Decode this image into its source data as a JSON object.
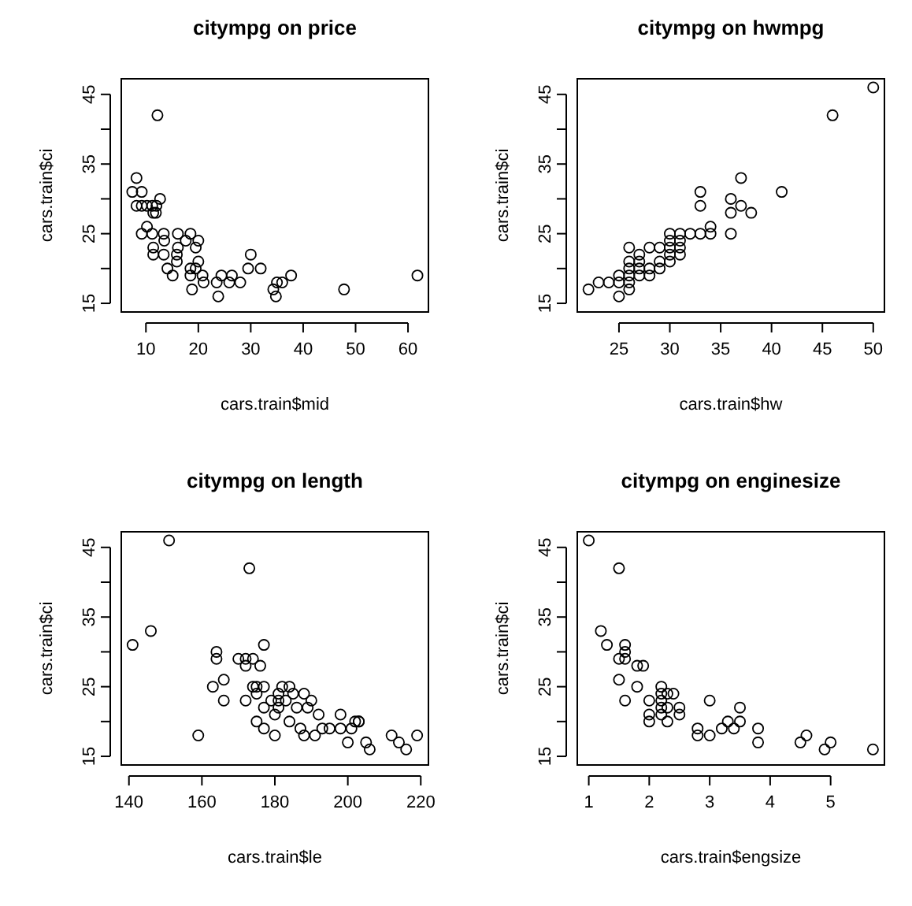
{
  "chart_data": [
    {
      "type": "scatter",
      "title": "citympg on price",
      "xlabel": "cars.train$mid",
      "ylabel": "cars.train$ci",
      "marker": "circle",
      "xlim": [
        5.3,
        63.9
      ],
      "xticks": [
        10,
        20,
        30,
        40,
        50,
        60
      ],
      "ylim": [
        13.76,
        47.24
      ],
      "yticks": [
        15,
        {
          "value": 20,
          "label": null
        },
        25,
        {
          "value": 30,
          "label": null
        },
        35,
        {
          "value": 40,
          "label": null
        },
        45
      ],
      "series": [
        {
          "color": "#000000",
          "x": [
            12.2,
            8.2,
            7.4,
            9.2,
            8.2,
            9.2,
            10.2,
            11.2,
            12,
            12.7,
            11.4,
            11.9,
            10.2,
            9.2,
            11.2,
            13.4,
            16.1,
            18.5,
            11.4,
            13.5,
            16.1,
            19.5,
            17.6,
            20,
            11.4,
            13.4,
            15.9,
            15.9,
            14.1,
            15.1,
            18.5,
            19.5,
            18.5,
            20,
            20.8,
            21,
            18.8,
            23.5,
            24.4,
            25.9,
            26.4,
            28,
            23.8,
            29.5,
            30,
            31.9,
            34.3,
            34.8,
            35,
            36,
            37.7,
            47.8,
            61.8
          ],
          "values": [
            42,
            33,
            31,
            31,
            29,
            29,
            29,
            29,
            29,
            30,
            28,
            28,
            26,
            25,
            25,
            25,
            25,
            25,
            23,
            24,
            23,
            23,
            24,
            24,
            22,
            22,
            22,
            21,
            20,
            19,
            20,
            20,
            19,
            21,
            19,
            18,
            17,
            18,
            19,
            18,
            19,
            18,
            16,
            20,
            22,
            20,
            17,
            16,
            18,
            18,
            19,
            17,
            19
          ]
        }
      ]
    },
    {
      "type": "scatter",
      "title": "citympg on hwmpg",
      "xlabel": "cars.train$hw",
      "ylabel": "cars.train$ci",
      "marker": "circle",
      "xlim": [
        20.9,
        51.1
      ],
      "xticks": [
        25,
        30,
        35,
        40,
        45,
        50
      ],
      "ylim": [
        13.76,
        47.24
      ],
      "yticks": [
        15,
        {
          "value": 20,
          "label": null
        },
        25,
        {
          "value": 30,
          "label": null
        },
        35,
        {
          "value": 40,
          "label": null
        },
        45
      ],
      "series": [
        {
          "color": "#000000",
          "x": [
            22,
            23,
            24,
            25,
            25,
            25,
            26,
            26,
            26,
            26,
            26,
            26,
            27,
            27,
            27,
            27,
            28,
            28,
            28,
            29,
            29,
            29,
            30,
            30,
            30,
            30,
            30,
            31,
            31,
            31,
            31,
            32,
            33,
            34,
            34,
            33,
            33,
            36,
            36,
            36,
            37,
            37,
            38,
            41,
            46,
            50
          ],
          "values": [
            17,
            18,
            18,
            16,
            18,
            19,
            17,
            18,
            19,
            20,
            21,
            23,
            19,
            20,
            21,
            22,
            19,
            20,
            23,
            20,
            21,
            23,
            21,
            22,
            23,
            24,
            25,
            22,
            23,
            24,
            25,
            25,
            25,
            25,
            26,
            29,
            31,
            25,
            28,
            30,
            29,
            33,
            28,
            31,
            42,
            46
          ]
        }
      ]
    },
    {
      "type": "scatter",
      "title": "citympg on length",
      "xlabel": "cars.train$le",
      "ylabel": "cars.train$ci",
      "marker": "circle",
      "xlim": [
        137.9,
        222.1
      ],
      "xticks": [
        140,
        160,
        180,
        200,
        220
      ],
      "ylim": [
        13.76,
        47.24
      ],
      "yticks": [
        15,
        {
          "value": 20,
          "label": null
        },
        25,
        {
          "value": 30,
          "label": null
        },
        35,
        {
          "value": 40,
          "label": null
        },
        45
      ],
      "series": [
        {
          "color": "#000000",
          "x": [
            141,
            146,
            151,
            159,
            163,
            164,
            164,
            166,
            166,
            170,
            172,
            172,
            174,
            176,
            177,
            173,
            172,
            174,
            175,
            175,
            177,
            177,
            175,
            177,
            179,
            180,
            180,
            181,
            181,
            181,
            182,
            183,
            184,
            185,
            184,
            186,
            187,
            188,
            188,
            189,
            190,
            191,
            192,
            193,
            195,
            198,
            198,
            200,
            201,
            202,
            203,
            203,
            205,
            206,
            212,
            214,
            216,
            219
          ],
          "values": [
            31,
            33,
            46,
            18,
            25,
            30,
            29,
            26,
            23,
            29,
            29,
            28,
            29,
            28,
            31,
            42,
            23,
            25,
            25,
            24,
            25,
            22,
            20,
            19,
            23,
            21,
            18,
            24,
            23,
            22,
            25,
            23,
            25,
            24,
            20,
            22,
            19,
            24,
            18,
            22,
            23,
            18,
            21,
            19,
            19,
            21,
            19,
            17,
            19,
            20,
            20,
            20,
            17,
            16,
            18,
            17,
            16,
            18
          ]
        }
      ]
    },
    {
      "type": "scatter",
      "title": "citympg on enginesize",
      "xlabel": "cars.train$engsize",
      "ylabel": "cars.train$ci",
      "marker": "circle",
      "xlim": [
        0.81,
        5.89
      ],
      "xticks": [
        1,
        2,
        3,
        4,
        5
      ],
      "ylim": [
        13.76,
        47.24
      ],
      "yticks": [
        15,
        {
          "value": 20,
          "label": null
        },
        25,
        {
          "value": 30,
          "label": null
        },
        35,
        {
          "value": 40,
          "label": null
        },
        45
      ],
      "series": [
        {
          "color": "#000000",
          "x": [
            1.0,
            1.2,
            1.3,
            1.5,
            1.5,
            1.6,
            1.6,
            1.6,
            1.5,
            1.6,
            1.8,
            1.9,
            1.8,
            2.0,
            2.0,
            2.0,
            2.2,
            2.2,
            2.2,
            2.2,
            2.2,
            2.3,
            2.3,
            2.3,
            2.4,
            2.5,
            2.5,
            2.8,
            2.8,
            3.0,
            3.0,
            3.2,
            3.3,
            3.4,
            3.5,
            3.5,
            3.8,
            3.8,
            4.5,
            4.6,
            4.9,
            5.0,
            5.7
          ],
          "values": [
            46,
            33,
            31,
            42,
            29,
            29,
            31,
            30,
            26,
            23,
            28,
            28,
            25,
            23,
            21,
            20,
            25,
            24,
            23,
            22,
            21,
            24,
            22,
            20,
            24,
            22,
            21,
            19,
            18,
            23,
            18,
            19,
            20,
            19,
            20,
            22,
            19,
            17,
            17,
            18,
            16,
            17,
            16
          ]
        }
      ]
    }
  ]
}
